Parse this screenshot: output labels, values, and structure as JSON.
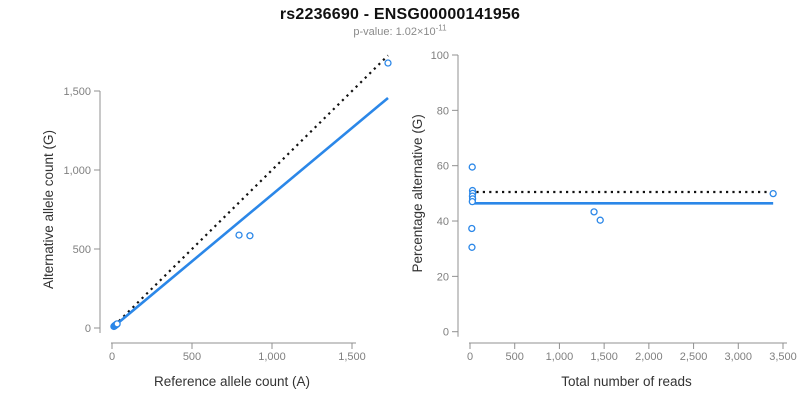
{
  "header": {
    "title": "rs2236690 - ENSG00000141956",
    "pvalue_label": "p-value: 1.02×10",
    "pvalue_exponent": "-11"
  },
  "colors": {
    "blue": "#2B87E8",
    "dotted_line": "#111111",
    "axis_line": "#909090",
    "tick_text": "#7f7f7f",
    "axis_title_text": "#333333"
  },
  "chart_data": [
    {
      "type": "scatter",
      "name": "allele-counts",
      "xlabel": "Reference allele count (A)",
      "ylabel": "Alternative allele count (G)",
      "xlim": [
        0,
        1750
      ],
      "ylim": [
        0,
        1750
      ],
      "xticks": [
        0,
        500,
        1000,
        1500
      ],
      "yticks": [
        0,
        500,
        1000,
        1500
      ],
      "grid": false,
      "legend": "none",
      "points": [
        [
          12,
          10
        ],
        [
          15,
          12
        ],
        [
          18,
          15
        ],
        [
          20,
          16
        ],
        [
          22,
          18
        ],
        [
          25,
          20
        ],
        [
          28,
          23
        ],
        [
          32,
          26
        ],
        [
          794,
          588
        ],
        [
          862,
          584
        ],
        [
          1725,
          1677
        ]
      ],
      "lines": [
        {
          "name": "identity-line",
          "style": "dotted",
          "color": "black",
          "x": [
            15,
            1725
          ],
          "y": [
            15,
            1725
          ]
        },
        {
          "name": "fit-line",
          "style": "solid",
          "color": "blue",
          "x": [
            0,
            1725
          ],
          "y": [
            0,
            1456
          ]
        }
      ]
    },
    {
      "type": "scatter",
      "name": "percentage-vs-reads",
      "xlabel": "Total number of reads",
      "ylabel": "Percentage alternative (G)",
      "xlim": [
        0,
        3500
      ],
      "ylim": [
        0,
        100
      ],
      "xticks": [
        0,
        500,
        1000,
        1500,
        2000,
        2500,
        3000,
        3500
      ],
      "yticks": [
        0,
        20,
        40,
        60,
        80,
        100
      ],
      "grid": false,
      "legend": "none",
      "points": [
        [
          25,
          59.5
        ],
        [
          28,
          51
        ],
        [
          30,
          50
        ],
        [
          27,
          49
        ],
        [
          29,
          48
        ],
        [
          26,
          47
        ],
        [
          20,
          37.3
        ],
        [
          22,
          30.5
        ],
        [
          1387,
          43.3
        ],
        [
          1456,
          40.3
        ],
        [
          3390,
          49.9
        ]
      ],
      "lines": [
        {
          "name": "identity-line",
          "style": "dotted",
          "color": "black",
          "x": [
            0,
            3350
          ],
          "y": [
            50.5,
            50.5
          ]
        },
        {
          "name": "fit-line",
          "style": "solid",
          "color": "blue",
          "x": [
            0,
            3390
          ],
          "y": [
            46.4,
            46.4
          ]
        }
      ]
    }
  ]
}
